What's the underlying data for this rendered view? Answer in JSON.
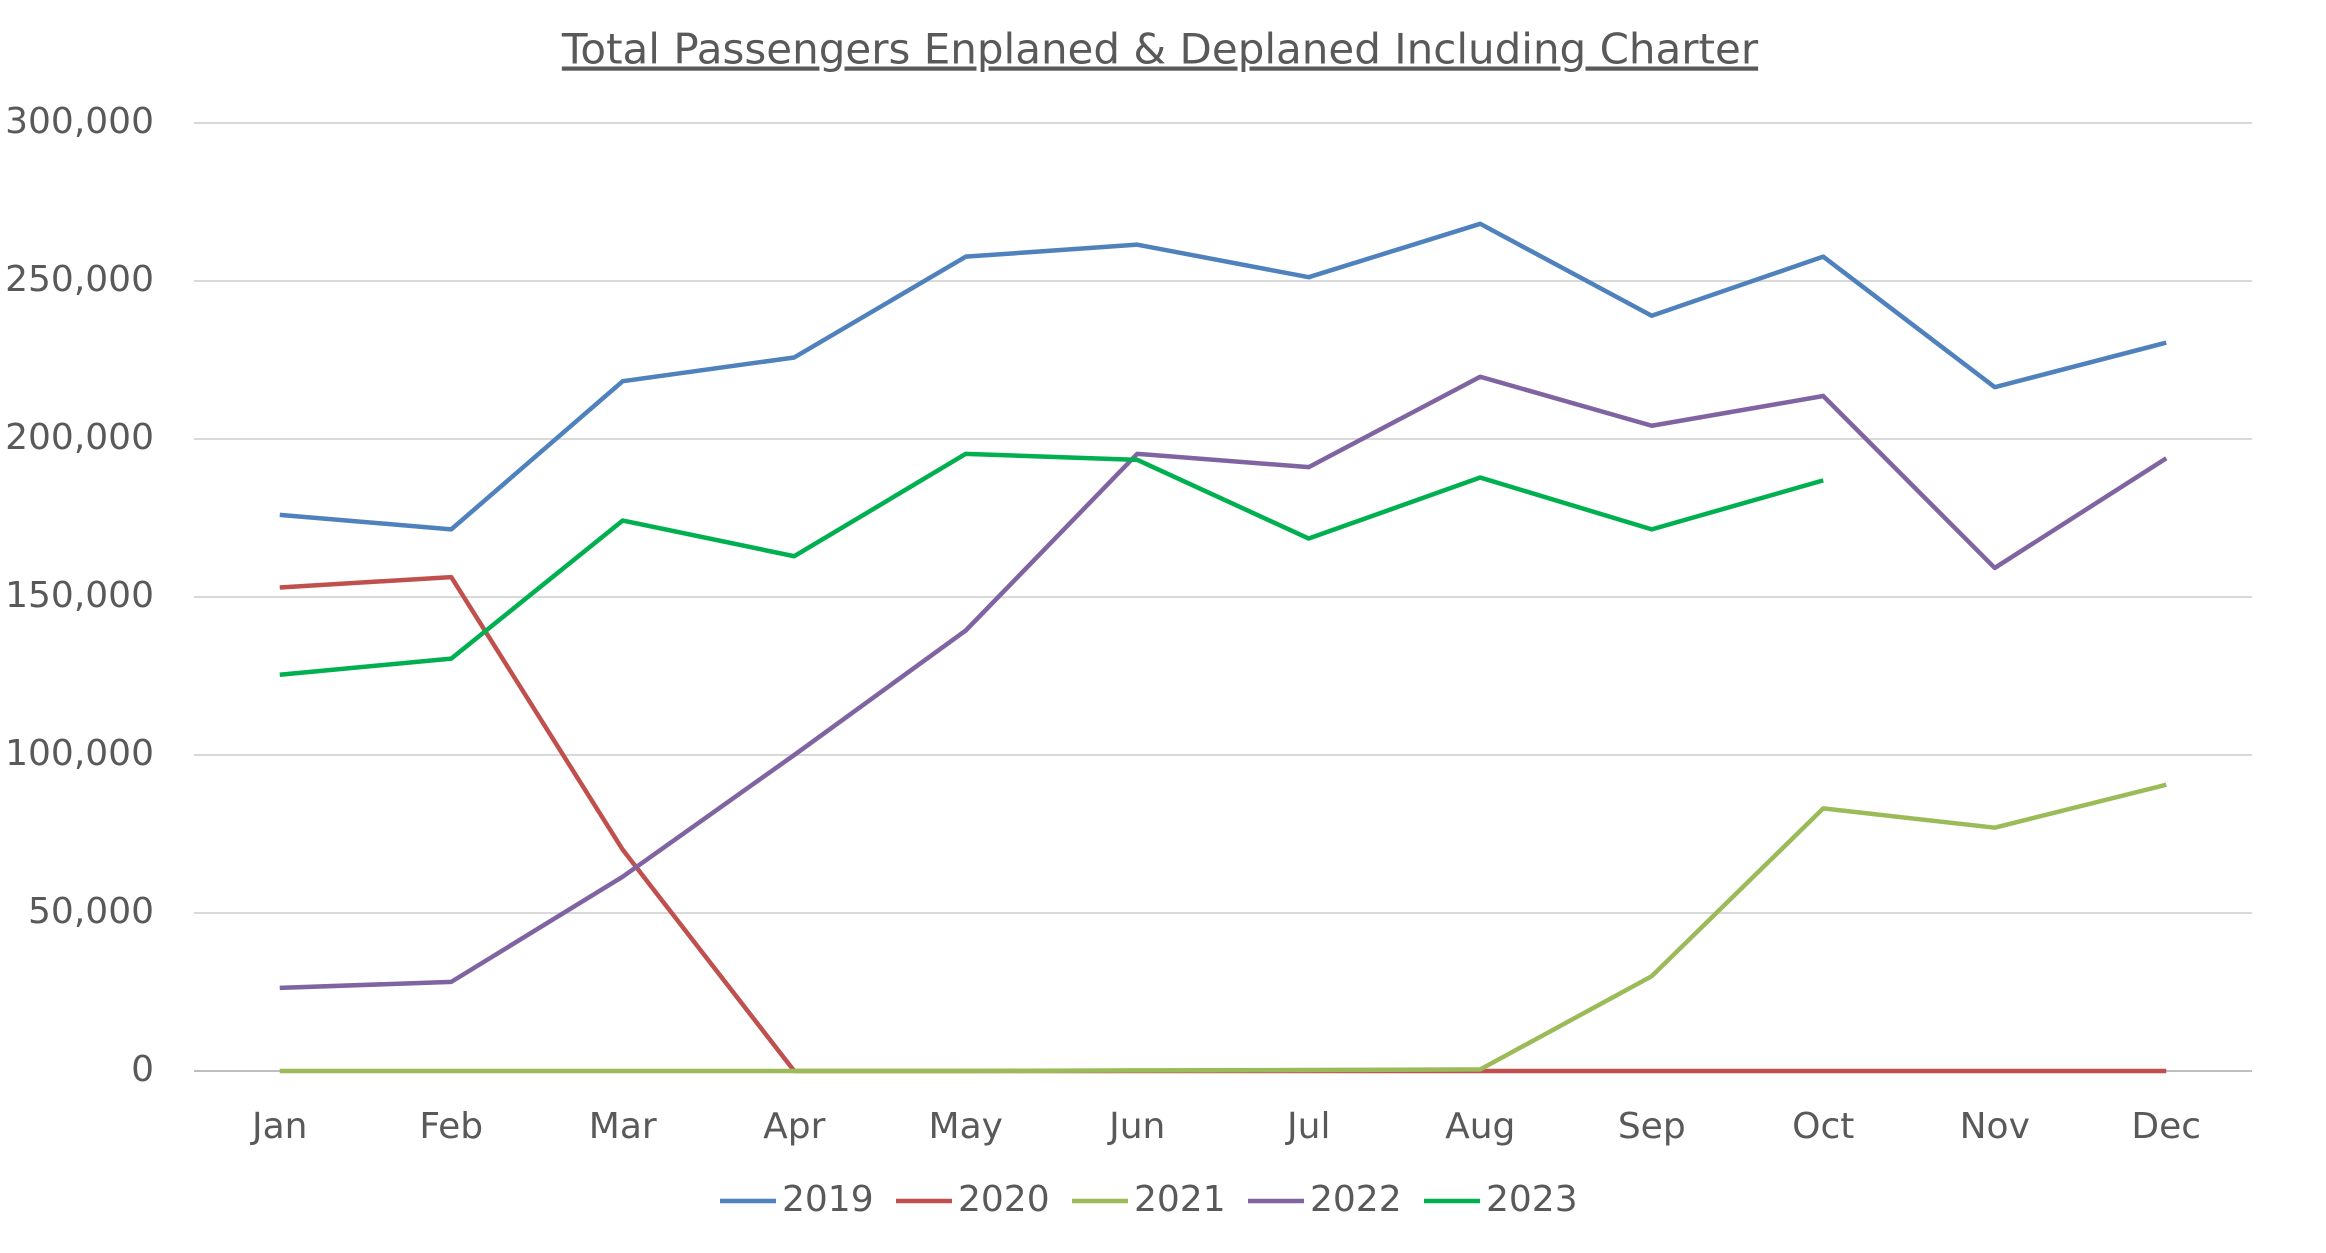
{
  "chart_data": {
    "type": "line",
    "title": "Total Passengers Enplaned & Deplaned Including Charter",
    "categories": [
      "Jan",
      "Feb",
      "Mar",
      "Apr",
      "May",
      "Jun",
      "Jul",
      "Aug",
      "Sep",
      "Oct",
      "Nov",
      "Dec"
    ],
    "series": [
      {
        "name": "2019",
        "color": "#4f81bd",
        "values": [
          176000,
          171400,
          218300,
          225800,
          257700,
          261500,
          251200,
          268100,
          239000,
          257700,
          216400,
          230500
        ]
      },
      {
        "name": "2020",
        "color": "#c0504d",
        "values": [
          153000,
          156300,
          70000,
          0,
          0,
          0,
          0,
          0,
          0,
          0,
          0,
          0
        ]
      },
      {
        "name": "2021",
        "color": "#9bbb59",
        "values": [
          0,
          0,
          0,
          0,
          0,
          200,
          300,
          500,
          30000,
          83100,
          77000,
          90600
        ]
      },
      {
        "name": "2022",
        "color": "#8064a2",
        "values": [
          26300,
          28200,
          61500,
          100000,
          139400,
          195300,
          191100,
          219700,
          204200,
          213600,
          159200,
          193900
        ]
      },
      {
        "name": "2023",
        "color": "#00b050",
        "values": [
          125400,
          130500,
          174200,
          162900,
          195300,
          193400,
          168500,
          187800,
          171400,
          186900,
          null,
          null
        ]
      }
    ],
    "ylim": [
      0,
      300000
    ],
    "yticks": [
      0,
      {
        "value": 50000,
        "label": "50,000"
      },
      {
        "value": 100000,
        "label": "100,000"
      },
      {
        "value": 150000,
        "label": "150,000"
      },
      {
        "value": 200000,
        "label": "200,000"
      },
      {
        "value": 250000,
        "label": "250,000"
      },
      {
        "value": 300000,
        "label": "300,000"
      }
    ],
    "grid": true,
    "legend": "bottom"
  }
}
